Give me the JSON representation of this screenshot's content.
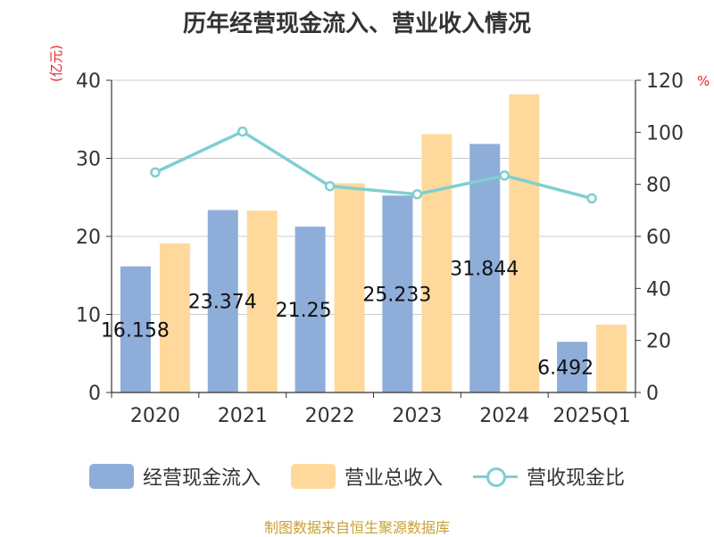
{
  "title": "历年经营现金流入、营业收入情况",
  "source": "制图数据来自恒生聚源数据库",
  "chart_data": {
    "type": "bar",
    "categories": [
      "2020",
      "2021",
      "2022",
      "2023",
      "2024",
      "2025Q1"
    ],
    "series": [
      {
        "name": "经营现金流入",
        "type": "bar",
        "axis": "left",
        "color": "#8eadd9",
        "values": [
          16.158,
          23.374,
          21.25,
          25.233,
          31.844,
          6.492
        ]
      },
      {
        "name": "营业总收入",
        "type": "bar",
        "axis": "left",
        "color": "#fed99b",
        "values": [
          19.1,
          23.3,
          26.8,
          33.1,
          38.2,
          8.7
        ]
      },
      {
        "name": "营收现金比",
        "type": "line",
        "axis": "right",
        "color": "#7fcfd0",
        "values": [
          84.6,
          100.3,
          79.3,
          76.2,
          83.4,
          74.6
        ]
      }
    ],
    "data_labels": [
      "16.158",
      "23.374",
      "21.25",
      "25.233",
      "31.844",
      "6.492"
    ],
    "y_left": {
      "unit": "(亿元)",
      "ticks": [
        "0",
        "10",
        "20",
        "30",
        "40"
      ],
      "range": [
        0,
        40
      ]
    },
    "y_right": {
      "unit": "%",
      "ticks": [
        "0",
        "20",
        "40",
        "60",
        "80",
        "100",
        "120"
      ],
      "range": [
        0,
        120
      ]
    },
    "grid": true,
    "legend_position": "bottom"
  }
}
